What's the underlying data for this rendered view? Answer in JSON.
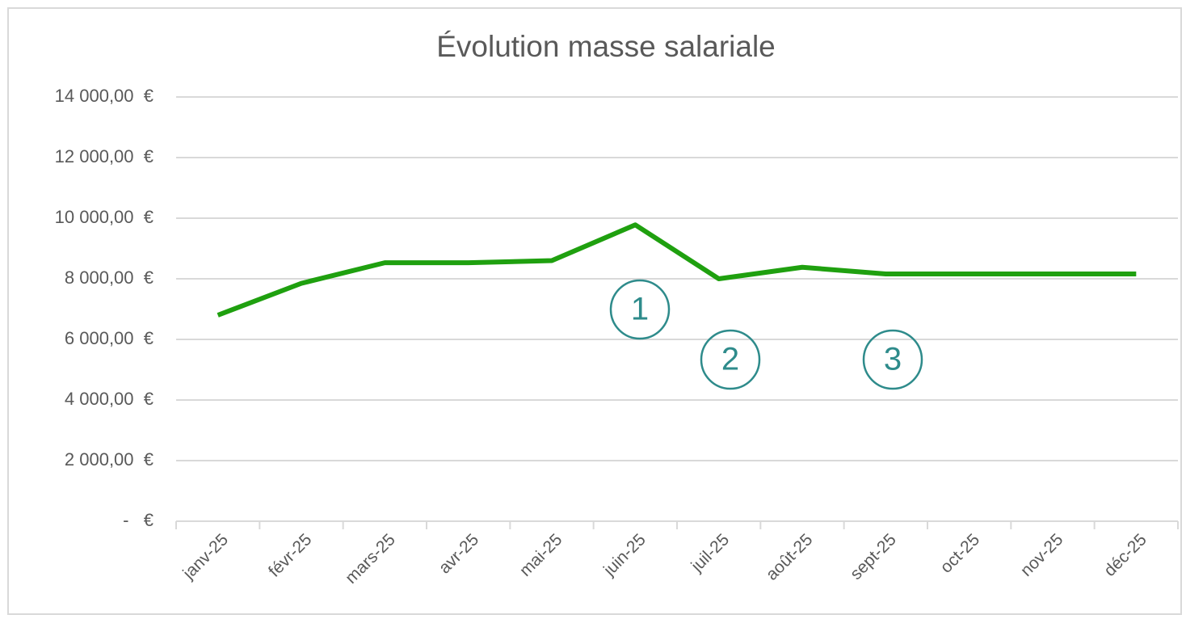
{
  "chart_data": {
    "type": "line",
    "title": "Évolution masse salariale",
    "categories": [
      "janv-25",
      "févr-25",
      "mars-25",
      "avr-25",
      "mai-25",
      "juin-25",
      "juil-25",
      "août-25",
      "sept-25",
      "oct-25",
      "nov-25",
      "déc-25"
    ],
    "series": [
      {
        "name": "Masse salariale",
        "color": "#1fa00f",
        "values": [
          6800,
          7850,
          8530,
          8530,
          8600,
          9780,
          8000,
          8380,
          8160,
          8160,
          8160,
          8160
        ]
      }
    ],
    "ylim": [
      0,
      14000
    ],
    "yticks": [
      {
        "value": 0,
        "label": "-   €"
      },
      {
        "value": 2000,
        "label": "2 000,00  €"
      },
      {
        "value": 4000,
        "label": "4 000,00  €"
      },
      {
        "value": 6000,
        "label": "6 000,00  €"
      },
      {
        "value": 8000,
        "label": "8 000,00  €"
      },
      {
        "value": 10000,
        "label": "10 000,00  €"
      },
      {
        "value": 12000,
        "label": "12 000,00  €"
      },
      {
        "value": 14000,
        "label": "14 000,00  €"
      }
    ],
    "grid": true,
    "annotations": [
      "1",
      "2",
      "3"
    ]
  }
}
